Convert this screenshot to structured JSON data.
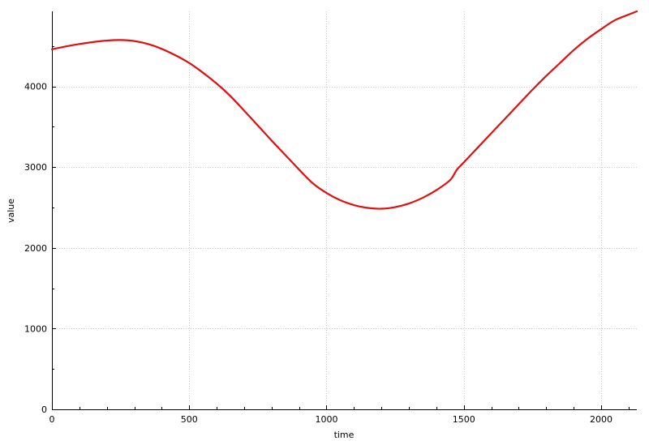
{
  "chart_data": {
    "type": "line",
    "title": "",
    "xlabel": "time",
    "ylabel": "value",
    "xlim": [
      0,
      2130
    ],
    "ylim": [
      0,
      4930
    ],
    "x_ticks": [
      0,
      500,
      1000,
      1500,
      2000
    ],
    "x_tick_labels": [
      "0",
      "500",
      "1000",
      "1500",
      "2000"
    ],
    "y_ticks": [
      0,
      1000,
      2000,
      3000,
      4000
    ],
    "y_tick_labels": [
      "0",
      "1000",
      "2000",
      "3000",
      "4000"
    ],
    "grid": true,
    "legend": "none",
    "colors": {
      "series": "#e01010",
      "grid": "#cccccc",
      "axis": "#000000"
    },
    "series": [
      {
        "x": [
          0,
          50,
          100,
          150,
          200,
          250,
          300,
          350,
          400,
          450,
          500,
          550,
          600,
          650,
          700,
          750,
          800,
          850,
          900,
          950,
          1000,
          1050,
          1100,
          1150,
          1200,
          1250,
          1300,
          1350,
          1400,
          1450,
          1475,
          1500,
          1550,
          1600,
          1650,
          1700,
          1750,
          1800,
          1850,
          1900,
          1950,
          2000,
          2050,
          2100,
          2130
        ],
        "y": [
          4460,
          4495,
          4525,
          4550,
          4568,
          4575,
          4562,
          4525,
          4465,
          4385,
          4290,
          4170,
          4035,
          3880,
          3700,
          3515,
          3330,
          3150,
          2970,
          2800,
          2680,
          2590,
          2530,
          2495,
          2485,
          2505,
          2550,
          2620,
          2715,
          2840,
          2970,
          3060,
          3240,
          3420,
          3600,
          3780,
          3960,
          4130,
          4290,
          4450,
          4590,
          4710,
          4820,
          4890,
          4930
        ]
      }
    ]
  }
}
